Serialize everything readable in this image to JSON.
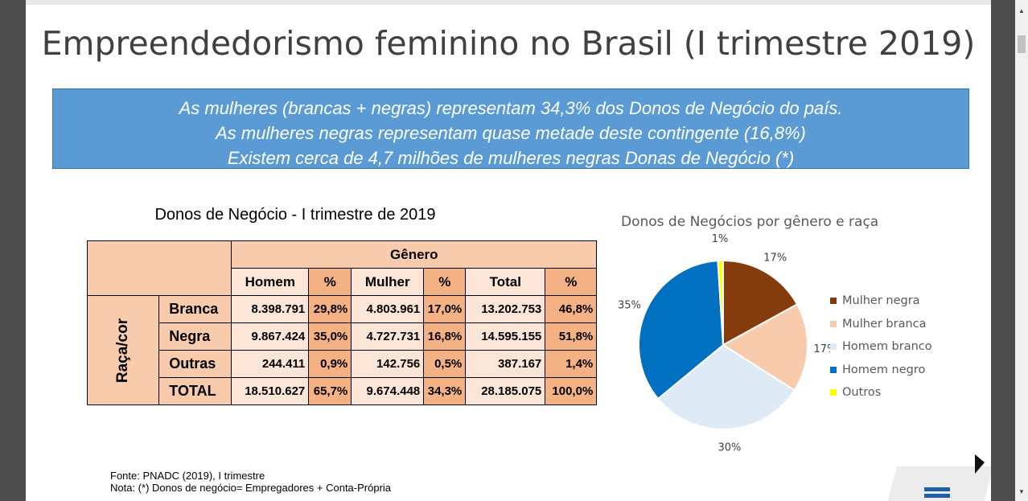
{
  "slide": {
    "title": "Empreendedorismo feminino no Brasil (I trimestre 2019)",
    "banner_lines": [
      "As mulheres (brancas + negras) representam 34,3% dos Donos de Negócio do país.",
      "As mulheres negras representam quase metade deste contingente (16,8%)",
      "Existem cerca de 4,7 milhões de mulheres negras Donas de Negócio (*)"
    ],
    "table_title": "Donos de Negócio - I trimestre de 2019",
    "footer": {
      "source": "Fonte: PNADC (2019), I trimestre",
      "note": "Nota: (*) Donos de negócio= Empregadores + Conta-Própria"
    }
  },
  "table": {
    "group_header": "Gênero",
    "side_header": "Raça/cor",
    "columns": [
      "Homem",
      "%",
      "Mulher",
      "%",
      "Total",
      "%"
    ],
    "rows": [
      {
        "label": "Branca",
        "values": [
          "8.398.791",
          "29,8%",
          "4.803.961",
          "17,0%",
          "13.202.753",
          "46,8%"
        ]
      },
      {
        "label": "Negra",
        "values": [
          "9.867.424",
          "35,0%",
          "4.727.731",
          "16,8%",
          "14.595.155",
          "51,8%"
        ]
      },
      {
        "label": "Outras",
        "values": [
          "244.411",
          "0,9%",
          "142.756",
          "0,5%",
          "387.167",
          "1,4%"
        ]
      },
      {
        "label": "TOTAL",
        "values": [
          "18.510.627",
          "65,7%",
          "9.674.448",
          "34,3%",
          "28.185.075",
          "100,0%"
        ]
      }
    ]
  },
  "chart_data": {
    "type": "pie",
    "title": "Donos de Negócios por gênero e raça",
    "slices": [
      {
        "name": "Mulher negra",
        "value": 17,
        "label": "17%",
        "color": "#843c0c"
      },
      {
        "name": "Mulher branca",
        "value": 17,
        "label": "17%",
        "color": "#f8cbad"
      },
      {
        "name": "Homem branco",
        "value": 30,
        "label": "30%",
        "color": "#deebf7"
      },
      {
        "name": "Homem negro",
        "value": 35,
        "label": "35%",
        "color": "#0070c0"
      },
      {
        "name": "Outros",
        "value": 1,
        "label": "1%",
        "color": "#ffff00"
      }
    ],
    "legend_position": "right"
  }
}
